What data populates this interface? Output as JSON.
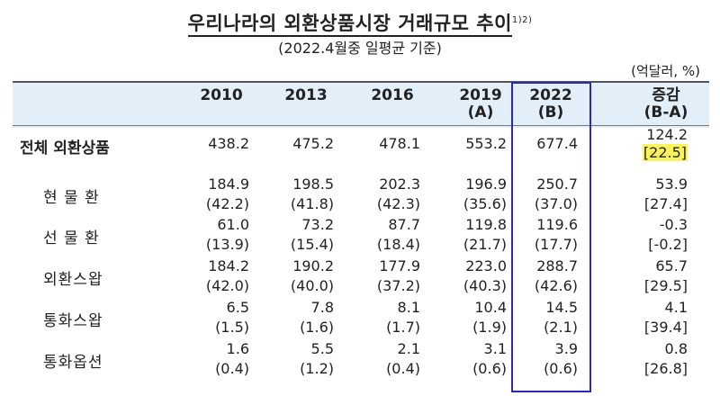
{
  "title": {
    "text": "우리나라의 외환상품시장 거래규모 추이",
    "sup": "1)2)"
  },
  "subtitle": "(2022.4월중 일평균 기준)",
  "unit": "(억달러, %)",
  "columns": [
    {
      "line1": "2010",
      "line2": ""
    },
    {
      "line1": "2013",
      "line2": ""
    },
    {
      "line1": "2016",
      "line2": ""
    },
    {
      "line1": "2019",
      "line2": "(A)"
    },
    {
      "line1": "2022",
      "line2": "(B)"
    },
    {
      "line1": "증감",
      "line2": "(B-A)"
    }
  ],
  "rows": [
    {
      "label": "전체 외환상품",
      "values": [
        "438.2",
        "475.2",
        "478.1",
        "553.2",
        "677.4",
        "124.2"
      ],
      "shares": [
        "",
        "",
        "",
        "",
        "",
        "[22.5]"
      ]
    },
    {
      "label": "현 물 환",
      "values": [
        "184.9",
        "198.5",
        "202.3",
        "196.9",
        "250.7",
        "53.9"
      ],
      "shares": [
        "(42.2)",
        "(41.8)",
        "(42.3)",
        "(35.6)",
        "(37.0)",
        "[27.4]"
      ]
    },
    {
      "label": "선 물 환",
      "values": [
        "61.0",
        "73.2",
        "87.7",
        "119.8",
        "119.6",
        "-0.3"
      ],
      "shares": [
        "(13.9)",
        "(15.4)",
        "(18.4)",
        "(21.7)",
        "(17.7)",
        "[-0.2]"
      ]
    },
    {
      "label": "외환스왑",
      "values": [
        "184.2",
        "190.2",
        "177.9",
        "223.0",
        "288.7",
        "65.7"
      ],
      "shares": [
        "(42.0)",
        "(40.0)",
        "(37.2)",
        "(40.3)",
        "(42.6)",
        "[29.5]"
      ]
    },
    {
      "label": "통화스왑",
      "values": [
        "6.5",
        "7.8",
        "8.1",
        "10.4",
        "14.5",
        "4.1"
      ],
      "shares": [
        "(1.5)",
        "(1.6)",
        "(1.7)",
        "(1.9)",
        "(2.1)",
        "[39.4]"
      ]
    },
    {
      "label": "통화옵션",
      "values": [
        "1.6",
        "5.5",
        "2.1",
        "3.1",
        "3.9",
        "0.8"
      ],
      "shares": [
        "(0.4)",
        "(1.2)",
        "(0.4)",
        "(0.6)",
        "(0.6)",
        "[26.8]"
      ]
    }
  ],
  "colors": {
    "header_bg": "#e2eef8",
    "highlight_border": "#2a2ab8",
    "highlight_fill": "#fbf35a"
  }
}
